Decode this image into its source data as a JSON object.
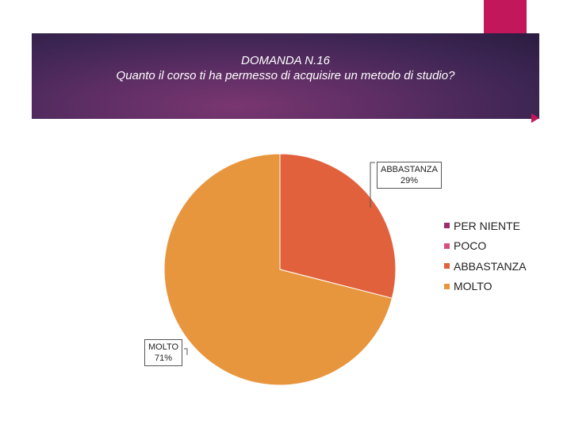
{
  "chart_data": {
    "type": "pie",
    "title": "DOMANDA N.16",
    "subtitle": "Quanto il corso ti ha permesso di acquisire un metodo di studio?",
    "categories": [
      "PER NIENTE",
      "POCO",
      "ABBASTANZA",
      "MOLTO"
    ],
    "values": [
      0,
      0,
      29,
      71
    ],
    "colors": [
      "#9b2d6e",
      "#d6507a",
      "#e2613d",
      "#e8963e"
    ],
    "data_labels": [
      {
        "category": "ABBASTANZA",
        "name": "ABBASTANZA",
        "percent": "29%"
      },
      {
        "category": "MOLTO",
        "name": "MOLTO",
        "percent": "71%"
      }
    ],
    "legend_position": "right"
  },
  "theme": {
    "accent": "#c2185b",
    "banner": "#4a2a5c"
  }
}
